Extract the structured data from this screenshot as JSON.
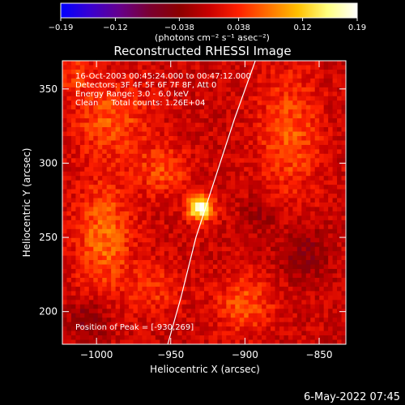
{
  "chart_data": {
    "type": "heatmap",
    "title": "Reconstructed RHESSI Image",
    "xlabel": "Heliocentric X (arcsec)",
    "ylabel": "Heliocentric Y (arcsec)",
    "xlim": [
      -1023,
      -832
    ],
    "ylim": [
      178,
      369
    ],
    "x_ticks": [
      -1000,
      -950,
      -900,
      -850
    ],
    "x_tick_labels": [
      "−1000",
      "−950",
      "−900",
      "−850"
    ],
    "y_ticks": [
      200,
      250,
      300,
      350
    ],
    "y_tick_labels": [
      "200",
      "250",
      "300",
      "350"
    ],
    "colorbar": {
      "min": -0.19,
      "max": 0.19,
      "ticks": [
        -0.19,
        -0.12,
        -0.038,
        0.038,
        0.12,
        0.19
      ],
      "tick_labels": [
        "−0.19",
        "−0.12",
        "−0.038",
        "0.038",
        "0.12",
        "0.19"
      ],
      "unit_label": "(photons cm⁻² s⁻¹ asec⁻²)",
      "stops": [
        "#0000ff",
        "#3a00d0",
        "#66008a",
        "#7a0030",
        "#8c0000",
        "#c80000",
        "#ff2000",
        "#ff7000",
        "#ffc000",
        "#ffff80",
        "#ffffff"
      ]
    },
    "annotations": [
      "16-Oct-2003 00:45:24.000 to 00:47:12.000",
      "Detectors: 3F 4F 5F 6F 7F 8F, Att 0",
      "Energy Range: 3.0 - 6.0 keV",
      "Clean     Total counts: 1.26E+04"
    ],
    "peak_label": "Position of Peak = [-930,269]",
    "peak": {
      "x": -930,
      "y": 269,
      "value": 0.19
    },
    "limb_curve": [
      {
        "x": -952,
        "y": 178
      },
      {
        "x": -943,
        "y": 210
      },
      {
        "x": -933,
        "y": 250
      },
      {
        "x": -920,
        "y": 290
      },
      {
        "x": -907,
        "y": 330
      },
      {
        "x": -893,
        "y": 369
      }
    ],
    "sources": [
      {
        "x": -930,
        "y": 270,
        "sx": 6,
        "sy": 6,
        "amp": 0.19
      },
      {
        "x": -995,
        "y": 250,
        "sx": 14,
        "sy": 28,
        "amp": 0.07
      },
      {
        "x": -990,
        "y": 330,
        "sx": 18,
        "sy": 18,
        "amp": 0.06
      },
      {
        "x": -955,
        "y": 295,
        "sx": 12,
        "sy": 12,
        "amp": 0.055
      },
      {
        "x": -870,
        "y": 320,
        "sx": 15,
        "sy": 30,
        "amp": 0.06
      },
      {
        "x": -900,
        "y": 205,
        "sx": 14,
        "sy": 14,
        "amp": 0.06
      },
      {
        "x": -1005,
        "y": 195,
        "sx": 10,
        "sy": 10,
        "amp": -0.05
      },
      {
        "x": -860,
        "y": 240,
        "sx": 12,
        "sy": 14,
        "amp": -0.04
      },
      {
        "x": -890,
        "y": 265,
        "sx": 8,
        "sy": 8,
        "amp": -0.035
      },
      {
        "x": -1015,
        "y": 360,
        "sx": 10,
        "sy": 10,
        "amp": 0.04
      },
      {
        "x": -960,
        "y": 215,
        "sx": 12,
        "sy": 12,
        "amp": 0.04
      }
    ],
    "noise_amplitude": 0.025,
    "base_level": 0.0,
    "grid": false
  },
  "footer": {
    "timestamp": "6-May-2022 07:45"
  }
}
